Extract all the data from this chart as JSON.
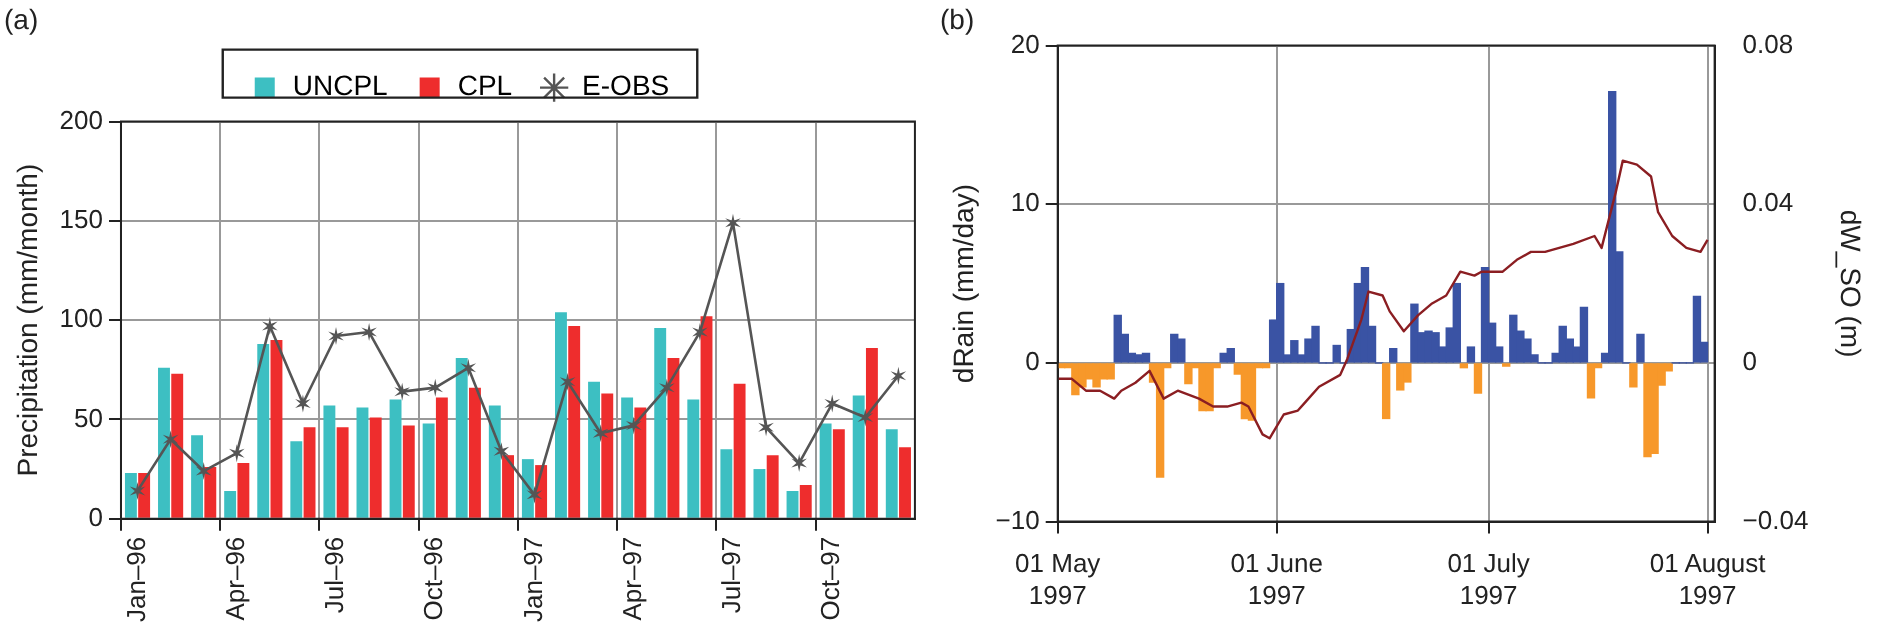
{
  "chart_data": [
    {
      "type": "bar",
      "title": "(a)",
      "ylabel": "Precipitation (mm/month)",
      "categories": [
        "Jan–96",
        null,
        null,
        "Apr–96",
        null,
        null,
        "Jul–96",
        null,
        null,
        "Oct–96",
        null,
        null,
        "Jan–97",
        null,
        null,
        "Apr–97",
        null,
        null,
        "Jul–97",
        null,
        null,
        "Oct–97",
        null,
        null
      ],
      "series": [
        {
          "name": "UNCPL",
          "color": "#3dbfc2",
          "values": [
            23,
            76,
            42,
            14,
            88,
            39,
            57,
            56,
            60,
            48,
            81,
            57,
            30,
            104,
            69,
            61,
            96,
            60,
            35,
            25,
            14,
            48,
            62,
            45
          ]
        },
        {
          "name": "CPL",
          "color": "#ee2d2d",
          "values": [
            23,
            73,
            26,
            28,
            90,
            46,
            46,
            51,
            47,
            61,
            66,
            32,
            27,
            97,
            63,
            56,
            81,
            102,
            68,
            32,
            17,
            45,
            86,
            36
          ]
        },
        {
          "name": "E-OBS",
          "type": "line",
          "color": "#555555",
          "marker": "cross",
          "values": [
            14,
            40,
            24,
            33,
            97,
            58,
            92,
            94,
            64,
            66,
            76,
            34,
            12,
            69,
            43,
            47,
            66,
            94,
            149,
            46,
            28,
            58,
            51,
            72
          ]
        }
      ],
      "ylim": [
        0,
        200
      ],
      "yticks": [
        0,
        50,
        100,
        150,
        200
      ],
      "grid": true,
      "legend": "top"
    },
    {
      "type": "bar",
      "title": "(b)",
      "ylabel": "dRain (mm/day)",
      "y2label": "dW_SO (m)",
      "x": [
        "1997-05-01",
        "1997-05-02",
        "1997-05-03",
        "1997-05-04",
        "1997-05-05",
        "1997-05-06",
        "1997-05-07",
        "1997-05-08",
        "1997-05-09",
        "1997-05-10",
        "1997-05-11",
        "1997-05-12",
        "1997-05-13",
        "1997-05-14",
        "1997-05-15",
        "1997-05-16",
        "1997-05-17",
        "1997-05-18",
        "1997-05-19",
        "1997-05-20",
        "1997-05-21",
        "1997-05-22",
        "1997-05-23",
        "1997-05-24",
        "1997-05-25",
        "1997-05-26",
        "1997-05-27",
        "1997-05-28",
        "1997-05-29",
        "1997-05-30",
        "1997-05-31",
        "1997-06-01",
        "1997-06-02",
        "1997-06-03",
        "1997-06-04",
        "1997-06-05",
        "1997-06-06",
        "1997-06-07",
        "1997-06-08",
        "1997-06-09",
        "1997-06-10",
        "1997-06-11",
        "1997-06-12",
        "1997-06-13",
        "1997-06-14",
        "1997-06-15",
        "1997-06-16",
        "1997-06-17",
        "1997-06-18",
        "1997-06-19",
        "1997-06-20",
        "1997-06-21",
        "1997-06-22",
        "1997-06-23",
        "1997-06-24",
        "1997-06-25",
        "1997-06-26",
        "1997-06-27",
        "1997-06-28",
        "1997-06-29",
        "1997-06-30",
        "1997-07-01",
        "1997-07-02",
        "1997-07-03",
        "1997-07-04",
        "1997-07-05",
        "1997-07-06",
        "1997-07-07",
        "1997-07-08",
        "1997-07-09",
        "1997-07-10",
        "1997-07-11",
        "1997-07-12",
        "1997-07-13",
        "1997-07-14",
        "1997-07-15",
        "1997-07-16",
        "1997-07-17",
        "1997-07-18",
        "1997-07-19",
        "1997-07-20",
        "1997-07-21",
        "1997-07-22",
        "1997-07-23",
        "1997-07-24",
        "1997-07-25",
        "1997-07-26",
        "1997-07-27",
        "1997-07-28",
        "1997-07-29",
        "1997-07-30",
        "1997-07-31"
      ],
      "series": [
        {
          "values": [
            -0.3,
            -0.3,
            -2,
            -1.5,
            -1,
            -1.5,
            -1,
            -1,
            3,
            1.8,
            0.6,
            0.5,
            0.6,
            -1.2,
            -7.2,
            -0.3,
            1.8,
            1.5,
            -1.3,
            -0.3,
            -3,
            -3,
            -0.3,
            0.6,
            0.9,
            -0.7,
            -3.5,
            -3.6,
            -0.3,
            -0.3,
            2.7,
            5,
            0.5,
            1.4,
            0.5,
            1.5,
            2.3,
            0,
            0,
            1.1,
            0,
            2.1,
            5,
            6,
            2.3,
            0,
            -3.5,
            0.9,
            -1.7,
            -1.2,
            3.7,
            1.9,
            2,
            1.9,
            1,
            2.2,
            5,
            -0.3,
            1,
            -1.9,
            6,
            2.5,
            1,
            -0.2,
            3,
            2,
            1.5,
            0.5,
            0,
            0,
            0.6,
            2.3,
            1.5,
            1,
            3.5,
            -2.2,
            -0.3,
            0.6,
            17.1,
            7,
            0,
            -1.5,
            1.8,
            -5.9,
            -5.7,
            -1.4,
            -0.5,
            0,
            0,
            0,
            4.2,
            1.3
          ],
          "colors": [
            "#f7982a",
            "#f7982a",
            "#f7982a",
            "#f7982a",
            "#f7982a",
            "#f7982a",
            "#f7982a",
            "#f7982a",
            "#3a53a4",
            "#3a53a4",
            "#3a53a4",
            "#3a53a4",
            "#3a53a4",
            "#f7982a",
            "#f7982a",
            "#f7982a",
            "#3a53a4",
            "#3a53a4",
            "#f7982a",
            "#f7982a",
            "#f7982a",
            "#f7982a",
            "#f7982a",
            "#3a53a4",
            "#3a53a4",
            "#f7982a",
            "#f7982a",
            "#f7982a",
            "#f7982a",
            "#f7982a",
            "#3a53a4",
            "#3a53a4",
            "#3a53a4",
            "#3a53a4",
            "#3a53a4",
            "#3a53a4",
            "#3a53a4",
            "#3a53a4",
            "#3a53a4",
            "#3a53a4",
            "#3a53a4",
            "#3a53a4",
            "#3a53a4",
            "#3a53a4",
            "#3a53a4",
            "#3a53a4",
            "#f7982a",
            "#3a53a4",
            "#f7982a",
            "#f7982a",
            "#3a53a4",
            "#3a53a4",
            "#3a53a4",
            "#3a53a4",
            "#3a53a4",
            "#3a53a4",
            "#3a53a4",
            "#f7982a",
            "#3a53a4",
            "#f7982a",
            "#3a53a4",
            "#3a53a4",
            "#3a53a4",
            "#f7982a",
            "#3a53a4",
            "#3a53a4",
            "#3a53a4",
            "#3a53a4",
            "#3a53a4",
            "#3a53a4",
            "#3a53a4",
            "#3a53a4",
            "#3a53a4",
            "#3a53a4",
            "#3a53a4",
            "#f7982a",
            "#f7982a",
            "#3a53a4",
            "#3a53a4",
            "#3a53a4",
            "#3a53a4",
            "#f7982a",
            "#3a53a4",
            "#f7982a",
            "#f7982a",
            "#f7982a",
            "#f7982a",
            "#3a53a4",
            "#3a53a4",
            "#3a53a4",
            "#3a53a4",
            "#3a53a4"
          ]
        },
        {
          "type": "line",
          "axis": "y2",
          "color": "#8b1e22",
          "x": [
            "1997-05-01",
            "1997-05-03",
            "1997-05-05",
            "1997-05-07",
            "1997-05-09",
            "1997-05-10",
            "1997-05-12",
            "1997-05-14",
            "1997-05-16",
            "1997-05-18",
            "1997-05-21",
            "1997-05-23",
            "1997-05-25",
            "1997-05-27",
            "1997-05-28",
            "1997-05-30",
            "1997-05-31",
            "1997-06-02",
            "1997-06-04",
            "1997-06-05",
            "1997-06-07",
            "1997-06-10",
            "1997-06-11",
            "1997-06-13",
            "1997-06-14",
            "1997-06-16",
            "1997-06-17",
            "1997-06-19",
            "1997-06-21",
            "1997-06-23",
            "1997-06-25",
            "1997-06-27",
            "1997-06-29",
            "1997-06-30",
            "1997-07-02",
            "1997-07-03",
            "1997-07-05",
            "1997-07-07",
            "1997-07-09",
            "1997-07-11",
            "1997-07-13",
            "1997-07-16",
            "1997-07-17",
            "1997-07-19",
            "1997-07-20",
            "1997-07-22",
            "1997-07-24",
            "1997-07-25",
            "1997-07-27",
            "1997-07-29",
            "1997-07-31",
            "1997-08-01"
          ],
          "values": [
            -0.004,
            -0.004,
            -0.007,
            -0.007,
            -0.009,
            -0.007,
            -0.005,
            -0.002,
            -0.009,
            -0.007,
            -0.009,
            -0.011,
            -0.011,
            -0.01,
            -0.011,
            -0.018,
            -0.019,
            -0.013,
            -0.012,
            -0.01,
            -0.006,
            -0.003,
            0.001,
            0.011,
            0.018,
            0.017,
            0.013,
            0.008,
            0.012,
            0.015,
            0.017,
            0.023,
            0.022,
            0.023,
            0.023,
            0.023,
            0.026,
            0.028,
            0.028,
            0.029,
            0.03,
            0.032,
            0.029,
            0.043,
            0.051,
            0.05,
            0.047,
            0.038,
            0.032,
            0.029,
            0.028,
            0.031
          ]
        }
      ],
      "xlim": [
        "1997-05-01",
        "1997-08-02"
      ],
      "xticks": [
        {
          "value": "1997-05-01",
          "label": "01 May 1997"
        },
        {
          "value": "1997-06-01",
          "label": "01 June 1997"
        },
        {
          "value": "1997-07-01",
          "label": "01 July 1997"
        },
        {
          "value": "1997-08-01",
          "label": "01 August 1997"
        }
      ],
      "ylim": [
        -10,
        20
      ],
      "yticks": [
        {
          "value": -10,
          "label": "−10"
        },
        0,
        10,
        20
      ],
      "y2lim": [
        -0.04,
        0.08
      ],
      "y2ticks": [
        {
          "value": -0.04,
          "label": "−0.04"
        },
        0,
        0.04,
        0.08
      ],
      "grid": true
    }
  ]
}
